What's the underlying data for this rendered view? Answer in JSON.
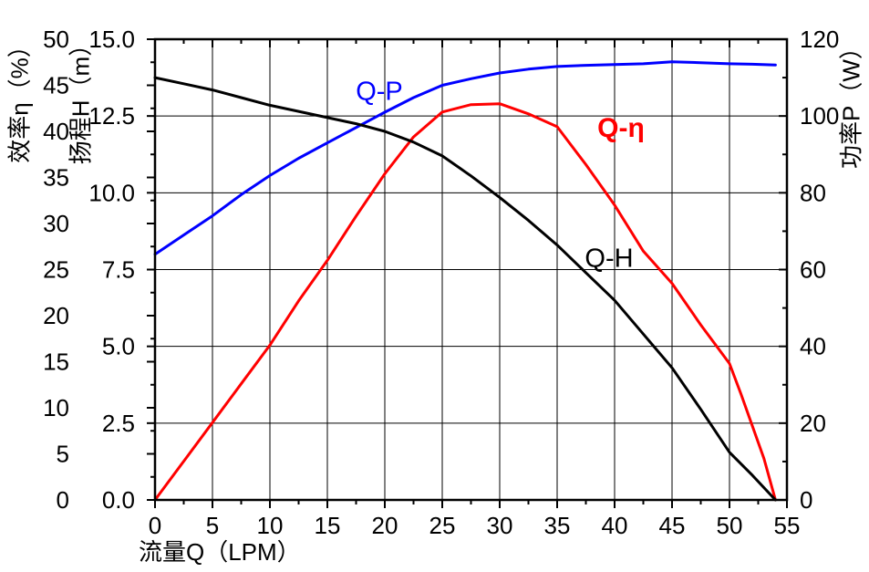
{
  "chart_data": {
    "type": "line",
    "background": "#ffffff",
    "x_axis": {
      "label": "流量Q（LPM）",
      "range": [
        0,
        55
      ],
      "major_ticks": [
        0,
        5,
        10,
        15,
        20,
        25,
        30,
        35,
        40,
        45,
        50,
        55
      ],
      "minor_tick_step": 2.5
    },
    "left_axis_efficiency": {
      "label": "效率η（%）",
      "range": [
        0,
        50
      ],
      "major_ticks": [
        0,
        5,
        10,
        15,
        20,
        25,
        30,
        35,
        40,
        45,
        50
      ],
      "minor_tick_step": 2.5
    },
    "left_axis_head": {
      "label": "扬程H（m）",
      "range": [
        0,
        15
      ],
      "major_ticks": [
        "0.0",
        "2.5",
        "5.0",
        "7.5",
        "10.0",
        "12.5",
        "15.0"
      ]
    },
    "right_axis_power": {
      "label": "功率P（W）",
      "range": [
        0,
        120
      ],
      "major_ticks": [
        0,
        20,
        40,
        60,
        80,
        100,
        120
      ],
      "minor_tick_step": 10
    },
    "grid": {
      "vertical_lines_lpm": [
        5,
        10,
        15,
        20,
        25,
        30,
        35,
        40,
        45,
        50
      ],
      "horizontal_lines_m": [
        2.5,
        5.0,
        7.5,
        10.0,
        12.5
      ],
      "color": "#000000"
    },
    "series": [
      {
        "name": "Q-P",
        "color": "#0000ff",
        "y_axis": "power_w",
        "points": [
          [
            0,
            64
          ],
          [
            2.5,
            69
          ],
          [
            5,
            74
          ],
          [
            7.5,
            79.5
          ],
          [
            10,
            84.5
          ],
          [
            12.5,
            89
          ],
          [
            15,
            93
          ],
          [
            17.5,
            97
          ],
          [
            20,
            101
          ],
          [
            22.5,
            104.8
          ],
          [
            25,
            108
          ],
          [
            27.5,
            109.7
          ],
          [
            30,
            111.2
          ],
          [
            32.5,
            112.2
          ],
          [
            35,
            112.9
          ],
          [
            37.5,
            113.2
          ],
          [
            40,
            113.4
          ],
          [
            42.5,
            113.6
          ],
          [
            45,
            114.1
          ],
          [
            47.5,
            113.9
          ],
          [
            50,
            113.6
          ],
          [
            52,
            113.5
          ],
          [
            54,
            113.3
          ]
        ]
      },
      {
        "name": "Q-η",
        "color": "#ff0000",
        "y_axis": "efficiency_pct",
        "points": [
          [
            0,
            0
          ],
          [
            2.5,
            4.2
          ],
          [
            5,
            8.4
          ],
          [
            7.5,
            12.6
          ],
          [
            10,
            16.8
          ],
          [
            12.5,
            21.6
          ],
          [
            15,
            26
          ],
          [
            17.5,
            30.8
          ],
          [
            20,
            35.4
          ],
          [
            22.5,
            39.4
          ],
          [
            25,
            42.1
          ],
          [
            27.5,
            42.9
          ],
          [
            30,
            43
          ],
          [
            32.5,
            41.9
          ],
          [
            35,
            40.5
          ],
          [
            37.5,
            36.4
          ],
          [
            40,
            32
          ],
          [
            42.5,
            27
          ],
          [
            45,
            23.5
          ],
          [
            47.5,
            19
          ],
          [
            50,
            14.8
          ],
          [
            51,
            11.5
          ],
          [
            52,
            8
          ],
          [
            53,
            4.5
          ],
          [
            54,
            0
          ]
        ]
      },
      {
        "name": "Q-H",
        "color": "#000000",
        "y_axis": "head_m",
        "points": [
          [
            0,
            13.75
          ],
          [
            2.5,
            13.55
          ],
          [
            5,
            13.35
          ],
          [
            7.5,
            13.1
          ],
          [
            10,
            12.85
          ],
          [
            12.5,
            12.65
          ],
          [
            15,
            12.45
          ],
          [
            17.5,
            12.25
          ],
          [
            20,
            12.0
          ],
          [
            22.5,
            11.65
          ],
          [
            25,
            11.2
          ],
          [
            27.5,
            10.55
          ],
          [
            30,
            9.85
          ],
          [
            32.5,
            9.1
          ],
          [
            35,
            8.3
          ],
          [
            37.5,
            7.4
          ],
          [
            40,
            6.5
          ],
          [
            42.5,
            5.4
          ],
          [
            45,
            4.3
          ],
          [
            47.5,
            2.95
          ],
          [
            50,
            1.55
          ],
          [
            52,
            0.8
          ],
          [
            54,
            0
          ]
        ]
      }
    ],
    "curve_labels": [
      {
        "text": "Q-P",
        "color": "#0000ff",
        "bold": false
      },
      {
        "text": "Q-η",
        "color": "#ff0000",
        "bold": true
      },
      {
        "text": "Q-H",
        "color": "#000000",
        "bold": false
      }
    ]
  }
}
